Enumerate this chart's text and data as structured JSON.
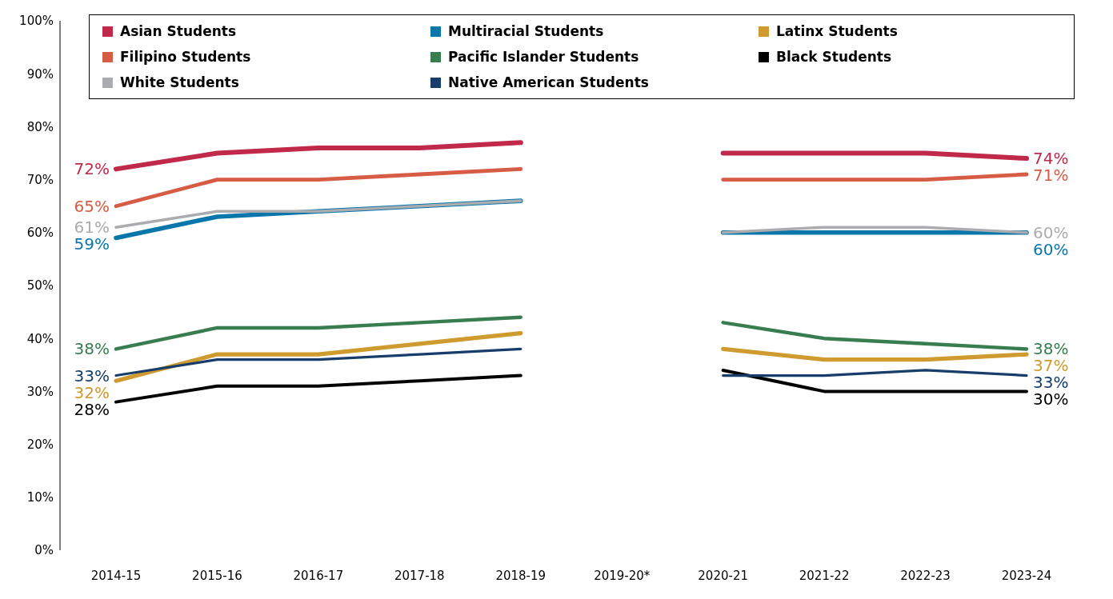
{
  "chart_data": {
    "type": "line",
    "categories": [
      "2014-15",
      "2015-16",
      "2016-17",
      "2017-18",
      "2018-19",
      "2019-20*",
      "2020-21",
      "2021-22",
      "2022-23",
      "2023-24"
    ],
    "ylim": [
      0,
      100
    ],
    "yticks": [
      {
        "value": 0,
        "label": "0%"
      },
      {
        "value": 10,
        "label": "10%"
      },
      {
        "value": 20,
        "label": "20%"
      },
      {
        "value": 30,
        "label": "30%"
      },
      {
        "value": 40,
        "label": "40%"
      },
      {
        "value": 50,
        "label": "50%"
      },
      {
        "value": 60,
        "label": "60%"
      },
      {
        "value": 70,
        "label": "70%"
      },
      {
        "value": 80,
        "label": "80%"
      },
      {
        "value": 90,
        "label": "90%"
      },
      {
        "value": 100,
        "label": "100%"
      }
    ],
    "grid": false,
    "legend": "top",
    "marker": "none",
    "line_style": "solid",
    "series": [
      {
        "name": "Asian Students",
        "color": "#c0294a",
        "values": [
          72,
          75,
          76,
          76,
          77,
          null,
          75,
          75,
          75,
          74
        ],
        "value_labels": [
          "72%",
          null,
          null,
          null,
          null,
          null,
          null,
          null,
          null,
          "74%"
        ]
      },
      {
        "name": "Multiracial Students",
        "color": "#0a77ab",
        "values": [
          59,
          63,
          64,
          65,
          66,
          null,
          60,
          60,
          60,
          60
        ],
        "value_labels": [
          "59%",
          null,
          null,
          null,
          null,
          null,
          null,
          null,
          null,
          "60%"
        ]
      },
      {
        "name": "Latinx Students",
        "color": "#cf9a2e",
        "values": [
          32,
          37,
          37,
          39,
          41,
          null,
          38,
          36,
          36,
          37
        ],
        "value_labels": [
          "32%",
          null,
          null,
          null,
          null,
          null,
          null,
          null,
          null,
          "37%"
        ]
      },
      {
        "name": "Filipino Students",
        "color": "#d65c45",
        "values": [
          65,
          70,
          70,
          71,
          72,
          null,
          70,
          70,
          70,
          71
        ],
        "value_labels": [
          "65%",
          null,
          null,
          null,
          null,
          null,
          null,
          null,
          null,
          "71%"
        ]
      },
      {
        "name": "Pacific Islander Students",
        "color": "#387d4f",
        "values": [
          38,
          42,
          42,
          43,
          44,
          null,
          43,
          40,
          39,
          38
        ],
        "value_labels": [
          "38%",
          null,
          null,
          null,
          null,
          null,
          null,
          null,
          null,
          "38%"
        ]
      },
      {
        "name": "Black Students",
        "color": "#000000",
        "values": [
          28,
          31,
          31,
          32,
          33,
          null,
          34,
          30,
          30,
          30
        ],
        "value_labels": [
          "28%",
          null,
          null,
          null,
          null,
          null,
          null,
          null,
          null,
          "30%"
        ]
      },
      {
        "name": "White Students",
        "color": "#abacaf",
        "values": [
          61,
          64,
          64,
          65,
          66,
          null,
          60,
          61,
          61,
          60
        ],
        "value_labels": [
          "61%",
          null,
          null,
          null,
          null,
          null,
          null,
          null,
          null,
          "60%"
        ]
      },
      {
        "name": "Native American Students",
        "color": "#173d6b",
        "values": [
          33,
          36,
          36,
          37,
          38,
          null,
          33,
          33,
          34,
          33
        ],
        "value_labels": [
          "33%",
          null,
          null,
          null,
          null,
          null,
          null,
          null,
          null,
          "33%"
        ]
      }
    ]
  }
}
